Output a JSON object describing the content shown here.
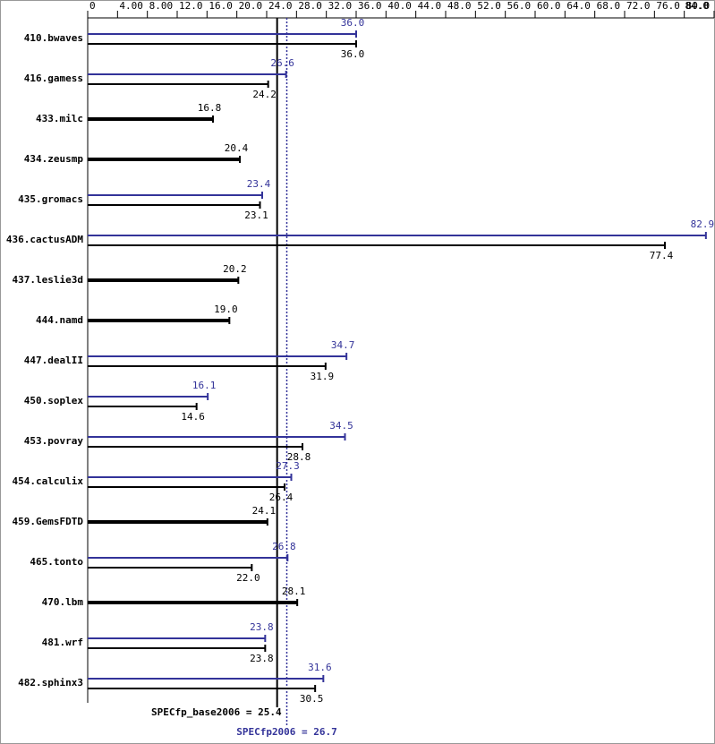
{
  "chart_data": {
    "type": "bar",
    "orientation": "horizontal",
    "categories": [
      "410.bwaves",
      "416.gamess",
      "433.milc",
      "434.zeusmp",
      "435.gromacs",
      "436.cactusADM",
      "437.leslie3d",
      "444.namd",
      "447.dealII",
      "450.soplex",
      "453.povray",
      "454.calculix",
      "459.GemsFDTD",
      "465.tonto",
      "470.lbm",
      "481.wrf",
      "482.sphinx3"
    ],
    "series": [
      {
        "name": "base",
        "color": "#000000",
        "values": [
          36.0,
          24.2,
          16.8,
          20.4,
          23.1,
          77.4,
          20.2,
          19.0,
          31.9,
          14.6,
          28.8,
          26.4,
          24.1,
          22.0,
          28.1,
          23.8,
          30.5
        ],
        "value_labels": [
          "36.0",
          "24.2",
          "16.8",
          "20.4",
          "23.1",
          "77.4",
          "20.2",
          "19.0",
          "31.9",
          "14.6",
          "28.8",
          "26.4",
          "24.1",
          "22.0",
          "28.1",
          "23.8",
          "30.5"
        ]
      },
      {
        "name": "peak",
        "color": "#333399",
        "values": [
          36.0,
          26.6,
          null,
          null,
          23.4,
          82.9,
          null,
          null,
          34.7,
          16.1,
          34.5,
          27.3,
          null,
          26.8,
          null,
          23.8,
          31.6
        ],
        "value_labels": [
          "36.0",
          "26.6",
          null,
          null,
          "23.4",
          "82.9",
          null,
          null,
          "34.7",
          "16.1",
          "34.5",
          "27.3",
          null,
          "26.8",
          null,
          "23.8",
          "31.6"
        ]
      }
    ],
    "xlim": [
      0,
      84
    ],
    "xticks": [
      0,
      {
        "value": 4,
        "label": "4.00"
      },
      {
        "value": 8,
        "label": "8.00"
      },
      {
        "value": 12,
        "label": "12.0"
      },
      {
        "value": 16,
        "label": "16.0"
      },
      {
        "value": 20,
        "label": "20.0"
      },
      {
        "value": 24,
        "label": "24.0"
      },
      {
        "value": 28,
        "label": "28.0"
      },
      {
        "value": 32,
        "label": "32.0"
      },
      {
        "value": 36,
        "label": "36.0"
      },
      {
        "value": 40,
        "label": "40.0"
      },
      {
        "value": 44,
        "label": "44.0"
      },
      {
        "value": 48,
        "label": "48.0"
      },
      {
        "value": 52,
        "label": "52.0"
      },
      {
        "value": 56,
        "label": "56.0"
      },
      {
        "value": 60,
        "label": "60.0"
      },
      {
        "value": 64,
        "label": "64.0"
      },
      {
        "value": 68,
        "label": "68.0"
      },
      {
        "value": 72,
        "label": "72.0"
      },
      {
        "value": 76,
        "label": "76.0"
      },
      {
        "value": 80,
        "label": "80.0"
      },
      {
        "value": 84,
        "label": "84.0"
      }
    ],
    "summary": [
      {
        "label": "SPECfp_base2006 = 25.4",
        "value": 25.4,
        "color": "#000000"
      },
      {
        "label": "SPECfp2006 = 26.7",
        "value": 26.7,
        "color": "#333399"
      }
    ]
  }
}
